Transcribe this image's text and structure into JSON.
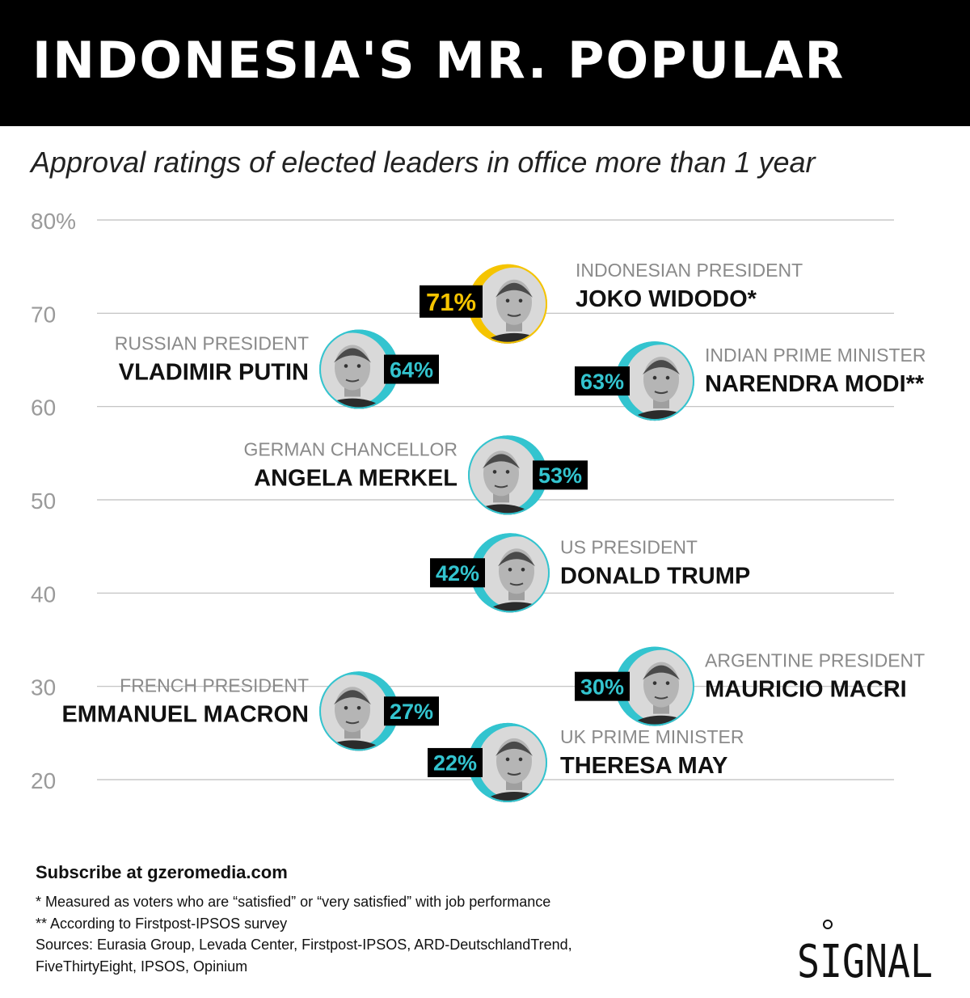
{
  "header": {
    "title": "INDONESIA'S MR. POPULAR"
  },
  "subtitle": "Approval ratings of elected leaders in office more than 1 year",
  "chart_data": {
    "type": "scatter",
    "title": "INDONESIA'S MR. POPULAR",
    "subtitle": "Approval ratings of elected leaders in office more than 1 year",
    "ylim": [
      20,
      80
    ],
    "yticks": [
      {
        "value": 80,
        "label": "80%"
      },
      {
        "value": 70,
        "label": "70"
      },
      {
        "value": 60,
        "label": "60"
      },
      {
        "value": 50,
        "label": "50"
      },
      {
        "value": 40,
        "label": "40"
      },
      {
        "value": 30,
        "label": "30"
      },
      {
        "value": 20,
        "label": "20"
      }
    ],
    "grid": true,
    "highlight_color": "#f5c400",
    "accent_color": "#33c4cf",
    "points": [
      {
        "role": "INDONESIAN PRESIDENT",
        "name": "JOKO WIDODO*",
        "value": 71,
        "label": "71%",
        "highlight": true
      },
      {
        "role": "RUSSIAN PRESIDENT",
        "name": "VLADIMIR PUTIN",
        "value": 64,
        "label": "64%"
      },
      {
        "role": "INDIAN PRIME MINISTER",
        "name": "NARENDRA MODI**",
        "value": 63,
        "label": "63%"
      },
      {
        "role": "GERMAN CHANCELLOR",
        "name": "ANGELA MERKEL",
        "value": 53,
        "label": "53%"
      },
      {
        "role": "US PRESIDENT",
        "name": "DONALD TRUMP",
        "value": 42,
        "label": "42%"
      },
      {
        "role": "ARGENTINE PRESIDENT",
        "name": "MAURICIO MACRI",
        "value": 30,
        "label": "30%"
      },
      {
        "role": "FRENCH PRESIDENT",
        "name": "EMMANUEL MACRON",
        "value": 27,
        "label": "27%"
      },
      {
        "role": "UK PRIME MINISTER",
        "name": "THERESA MAY",
        "value": 22,
        "label": "22%"
      }
    ]
  },
  "footer": {
    "subscribe": "Subscribe at gzeromedia.com",
    "notes": [
      "* Measured as voters who are “satisfied” or “very satisfied” with job performance",
      "** According to Firstpost-IPSOS survey",
      "Sources: Eurasia Group, Levada Center, Firstpost-IPSOS, ARD-DeutschlandTrend,",
      "FiveThirtyEight, IPSOS, Opinium"
    ],
    "logo_text": "SIGNAL"
  }
}
